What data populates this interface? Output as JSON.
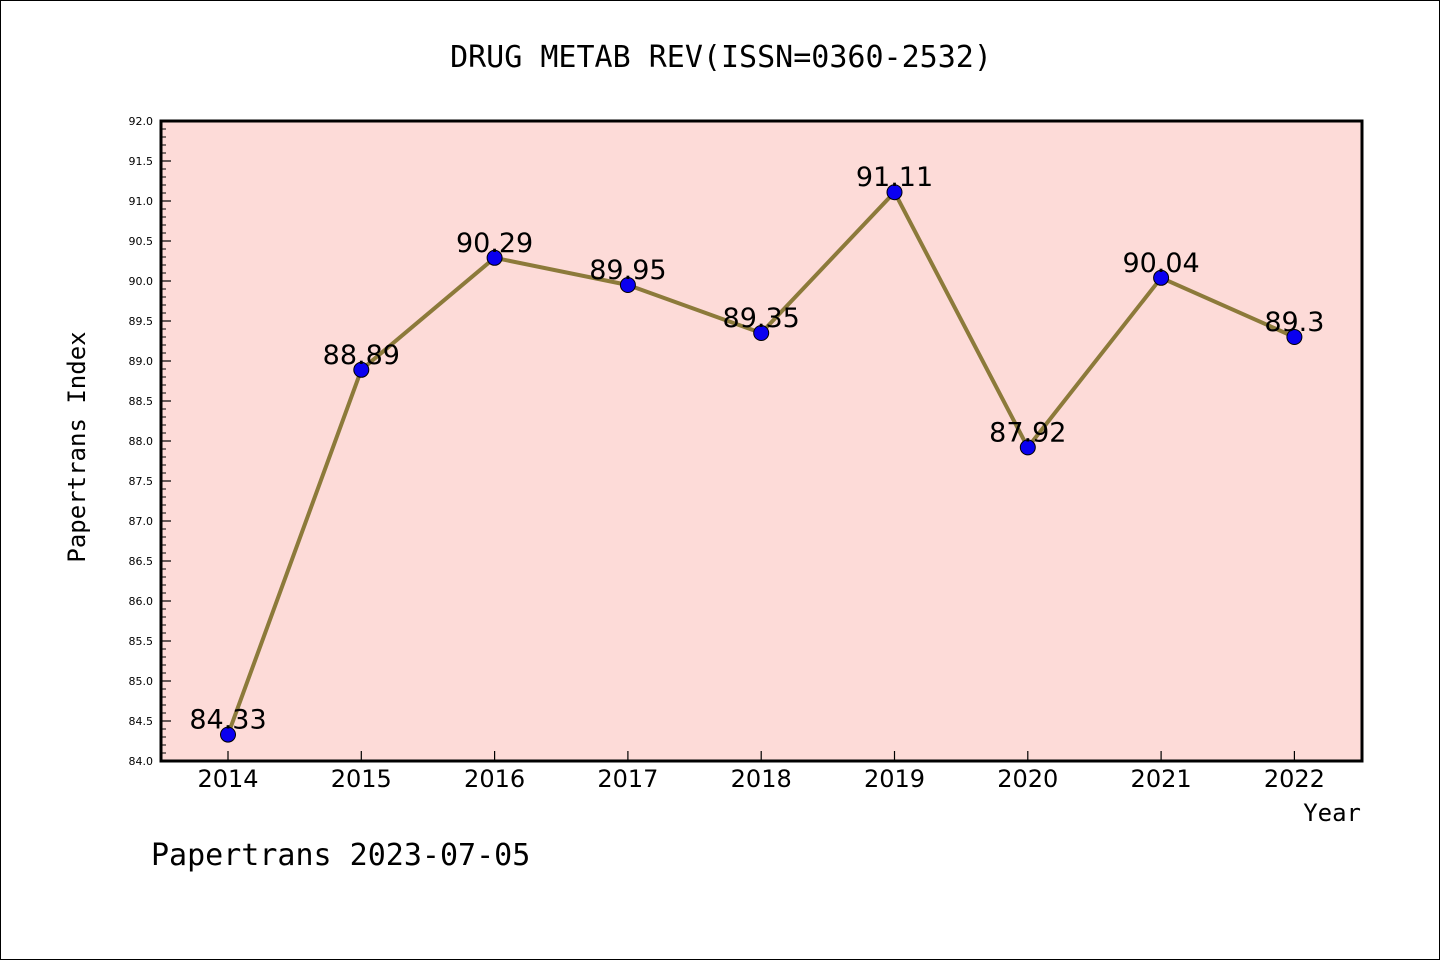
{
  "chart_data": {
    "type": "line",
    "title": "DRUG METAB REV(ISSN=0360-2532)",
    "xlabel": "Year",
    "ylabel": "Papertrans Index",
    "categories": [
      "2014",
      "2015",
      "2016",
      "2017",
      "2018",
      "2019",
      "2020",
      "2021",
      "2022"
    ],
    "series": [
      {
        "values": [
          84.33,
          88.89,
          90.29,
          89.95,
          89.35,
          91.11,
          87.92,
          90.04,
          89.3
        ],
        "data_labels": [
          "84.33",
          "88.89",
          "90.29",
          "89.95",
          "89.35",
          "91.11",
          "87.92",
          "90.04",
          "89.3"
        ]
      }
    ],
    "ylim": [
      84.0,
      92.0
    ],
    "yticks": [
      "84.0",
      "84.5",
      "85.0",
      "85.5",
      "86.0",
      "86.5",
      "87.0",
      "87.5",
      "88.0",
      "88.5",
      "89.0",
      "89.5",
      "90.0",
      "90.5",
      "91.0",
      "91.5",
      "92.0"
    ],
    "grid": false,
    "colors": {
      "plot_background": "#fddbd8",
      "line": "#8c7a3a",
      "marker": "#0a00f0"
    }
  },
  "footer": "Papertrans 2023-07-05"
}
